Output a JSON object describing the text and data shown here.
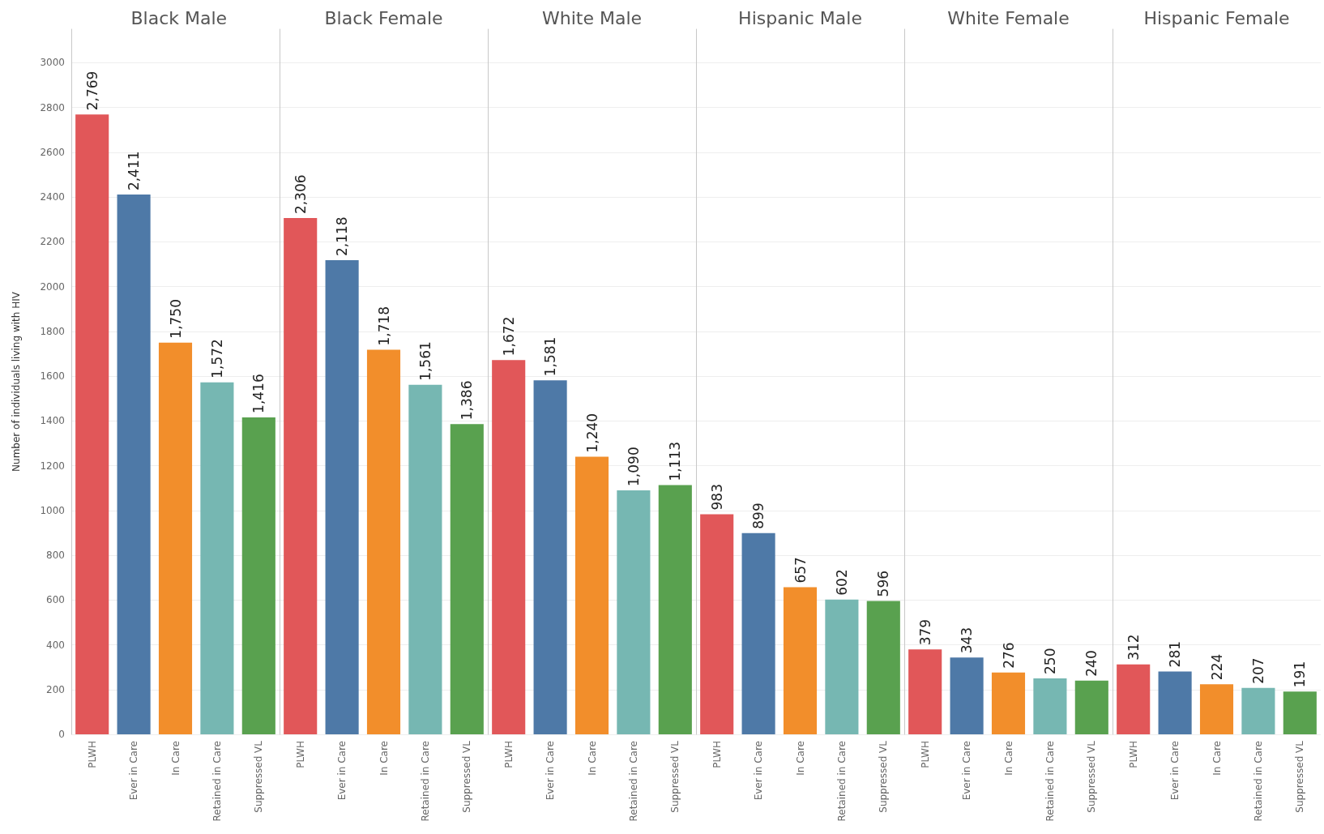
{
  "chart_data": [
    {
      "type": "bar",
      "title": "Black Male",
      "ylabel": "Number of individuals living with HIV",
      "categories": [
        "PLWH",
        "Ever in Care",
        "In Care",
        "Retained in Care",
        "Suppressed VL"
      ],
      "values": [
        2769,
        2411,
        1750,
        1572,
        1416
      ],
      "value_labels": [
        "2,769",
        "2,411",
        "1,750",
        "1,572",
        "1,416"
      ],
      "colors": [
        "#e15759",
        "#4e79a7",
        "#f28e2b",
        "#76b7b2",
        "#59a14f"
      ],
      "ylim": [
        0,
        3150
      ],
      "yticks": [
        0,
        200,
        400,
        600,
        800,
        1000,
        1200,
        1400,
        1600,
        1800,
        2000,
        2200,
        2400,
        2600,
        2800,
        3000
      ],
      "grid": "y"
    },
    {
      "type": "bar",
      "title": "Black Female",
      "categories": [
        "PLWH",
        "Ever in Care",
        "In Care",
        "Retained in Care",
        "Suppressed VL"
      ],
      "values": [
        2306,
        2118,
        1718,
        1561,
        1386
      ],
      "value_labels": [
        "2,306",
        "2,118",
        "1,718",
        "1,561",
        "1,386"
      ],
      "colors": [
        "#e15759",
        "#4e79a7",
        "#f28e2b",
        "#76b7b2",
        "#59a14f"
      ],
      "ylim": [
        0,
        3150
      ],
      "yticks": [
        0,
        200,
        400,
        600,
        800,
        1000,
        1200,
        1400,
        1600,
        1800,
        2000,
        2200,
        2400,
        2600,
        2800,
        3000
      ],
      "grid": "y",
      "tick_labels": "x"
    },
    {
      "type": "bar",
      "title": "White Male",
      "categories": [
        "PLWH",
        "Ever in Care",
        "In Care",
        "Retained in Care",
        "Suppressed VL"
      ],
      "values": [
        1672,
        1581,
        1240,
        1090,
        1113
      ],
      "value_labels": [
        "1,672",
        "1,581",
        "1,240",
        "1,090",
        "1,113"
      ],
      "colors": [
        "#e15759",
        "#4e79a7",
        "#f28e2b",
        "#76b7b2",
        "#59a14f"
      ],
      "ylim": [
        0,
        3150
      ],
      "yticks": [
        0,
        200,
        400,
        600,
        800,
        1000,
        1200,
        1400,
        1600,
        1800,
        2000,
        2200,
        2400,
        2600,
        2800,
        3000
      ],
      "grid": "y",
      "tick_labels": "x"
    },
    {
      "type": "bar",
      "title": "Hispanic Male",
      "categories": [
        "PLWH",
        "Ever in Care",
        "In Care",
        "Retained in Care",
        "Suppressed VL"
      ],
      "values": [
        983,
        899,
        657,
        602,
        596
      ],
      "value_labels": [
        "983",
        "899",
        "657",
        "602",
        "596"
      ],
      "colors": [
        "#e15759",
        "#4e79a7",
        "#f28e2b",
        "#76b7b2",
        "#59a14f"
      ],
      "ylim": [
        0,
        3150
      ],
      "yticks": [
        0,
        200,
        400,
        600,
        800,
        1000,
        1200,
        1400,
        1600,
        1800,
        2000,
        2200,
        2400,
        2600,
        2800,
        3000
      ],
      "grid": "y",
      "tick_labels": "x"
    },
    {
      "type": "bar",
      "title": "White Female",
      "categories": [
        "PLWH",
        "Ever in Care",
        "In Care",
        "Retained in Care",
        "Suppressed VL"
      ],
      "values": [
        379,
        343,
        276,
        250,
        240
      ],
      "value_labels": [
        "379",
        "343",
        "276",
        "250",
        "240"
      ],
      "colors": [
        "#e15759",
        "#4e79a7",
        "#f28e2b",
        "#76b7b2",
        "#59a14f"
      ],
      "ylim": [
        0,
        3150
      ],
      "yticks": [
        0,
        200,
        400,
        600,
        800,
        1000,
        1200,
        1400,
        1600,
        1800,
        2000,
        2200,
        2400,
        2600,
        2800,
        3000
      ],
      "grid": "y",
      "tick_labels": "x"
    },
    {
      "type": "bar",
      "title": "Hispanic Female",
      "categories": [
        "PLWH",
        "Ever in Care",
        "In Care",
        "Retained in Care",
        "Suppressed VL"
      ],
      "values": [
        312,
        281,
        224,
        207,
        191
      ],
      "value_labels": [
        "312",
        "281",
        "224",
        "207",
        "191"
      ],
      "colors": [
        "#e15759",
        "#4e79a7",
        "#f28e2b",
        "#76b7b2",
        "#59a14f"
      ],
      "ylim": [
        0,
        3150
      ],
      "yticks": [
        0,
        200,
        400,
        600,
        800,
        1000,
        1200,
        1400,
        1600,
        1800,
        2000,
        2200,
        2400,
        2600,
        2800,
        3000
      ],
      "grid": "y",
      "tick_labels": "x"
    }
  ]
}
